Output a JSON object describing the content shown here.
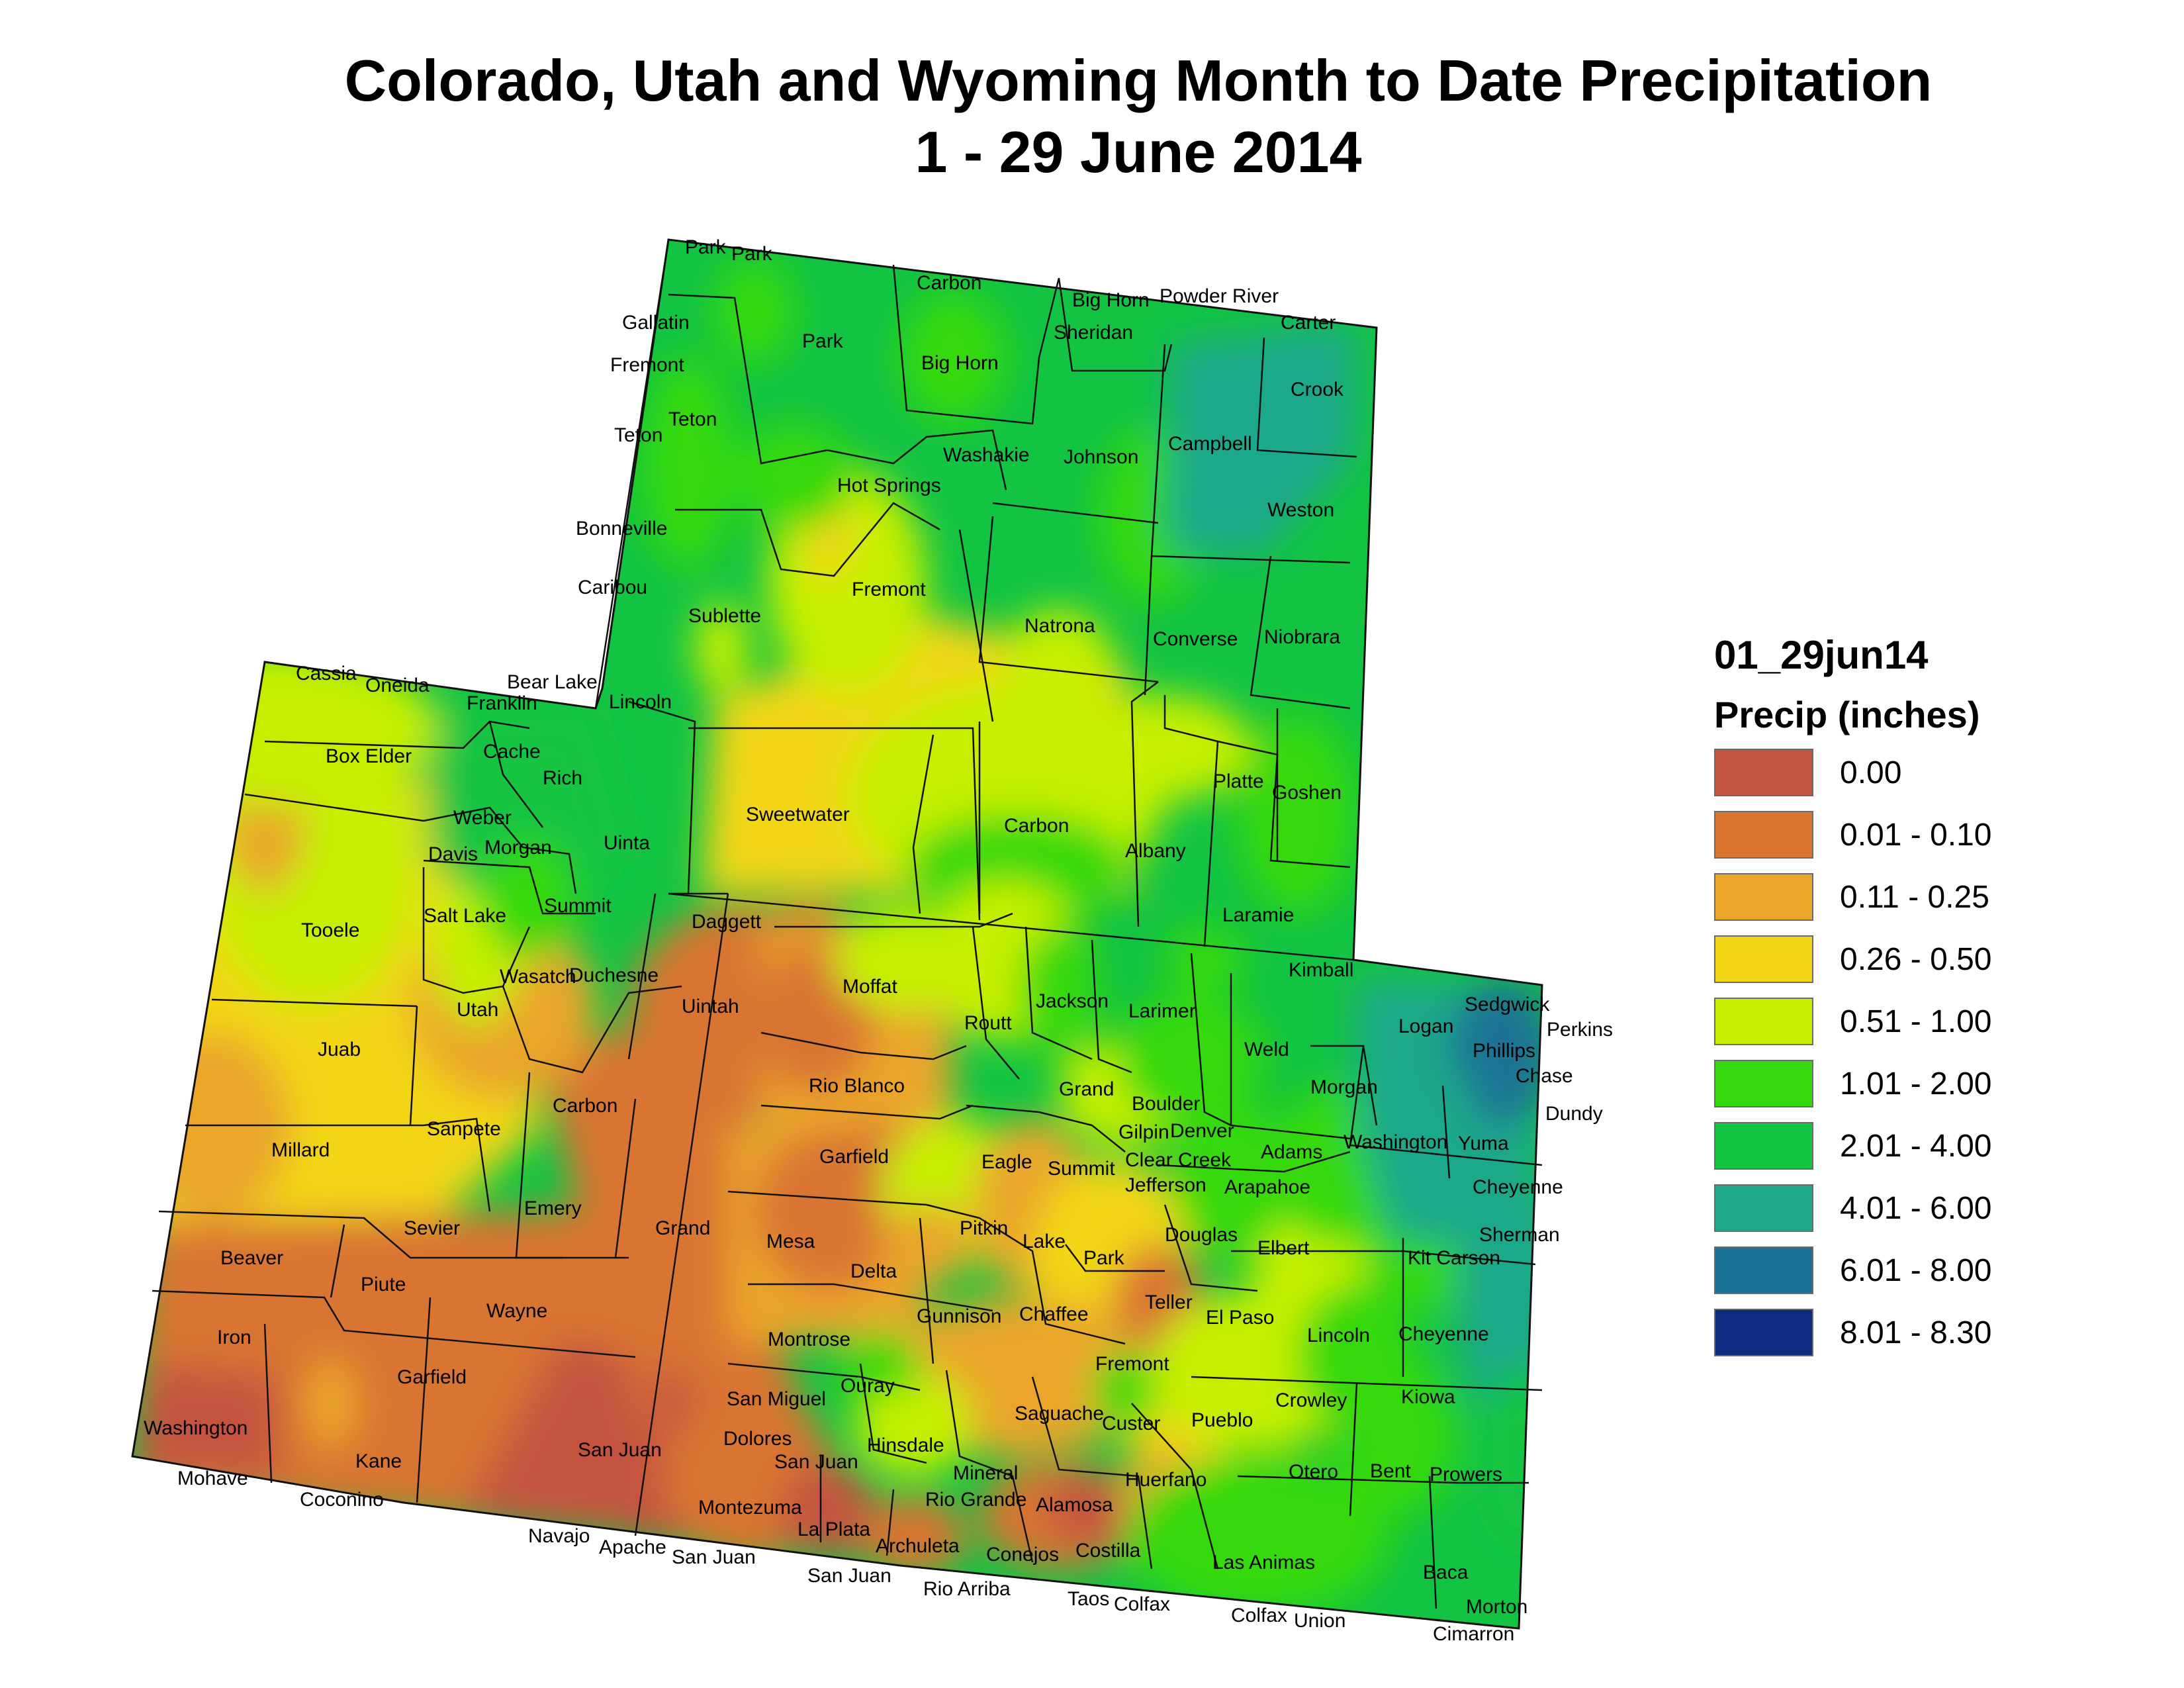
{
  "title_line1": "Colorado, Utah and Wyoming Month to Date Precipitation",
  "title_line2": "1 - 29 June 2014",
  "legend": {
    "layer_name": "01_29jun14",
    "field_name": "Precip (inches)",
    "classes": [
      {
        "label": "0.00",
        "color": "#c4533f"
      },
      {
        "label": "0.01 - 0.10",
        "color": "#d97530"
      },
      {
        "label": "0.11 - 0.25",
        "color": "#eaa52a"
      },
      {
        "label": "0.26 - 0.50",
        "color": "#f2d615"
      },
      {
        "label": "0.51 - 1.00",
        "color": "#c6ef00"
      },
      {
        "label": "1.01 - 2.00",
        "color": "#35d90e"
      },
      {
        "label": "2.01 - 4.00",
        "color": "#13c443"
      },
      {
        "label": "4.01 - 6.00",
        "color": "#1fa88a"
      },
      {
        "label": "6.01 - 8.00",
        "color": "#1a7394"
      },
      {
        "label": "8.01 - 8.30",
        "color": "#0d2b80"
      }
    ]
  },
  "labels": {
    "wy": [
      "Park",
      "Park",
      "Carbon",
      "Big Horn",
      "Powder River",
      "Carter",
      "Gallatin",
      "Park",
      "Sheridan",
      "Fremont",
      "Big Horn",
      "Crook",
      "Teton",
      "Teton",
      "Washakie",
      "Johnson",
      "Campbell",
      "Hot Springs",
      "Bonneville",
      "Weston",
      "Caribou",
      "Fremont",
      "Sublette",
      "Natrona",
      "Converse",
      "Niobrara",
      "Bear Lake",
      "Lincoln",
      "Sweetwater",
      "Carbon",
      "Albany",
      "Platte",
      "Goshen",
      "Uinta",
      "Laramie",
      "Kimball"
    ],
    "ut": [
      "Cassia",
      "Oneida",
      "Franklin",
      "Box Elder",
      "Cache",
      "Rich",
      "Weber",
      "Davis",
      "Morgan",
      "Summit",
      "Salt Lake",
      "Tooele",
      "Daggett",
      "Wasatch",
      "Duchesne",
      "Utah",
      "Uintah",
      "Juab",
      "Sanpete",
      "Carbon",
      "Millard",
      "Emery",
      "Sevier",
      "Grand",
      "Beaver",
      "Piute",
      "Wayne",
      "Iron",
      "Garfield",
      "Washington",
      "Kane",
      "San Juan",
      "Mohave",
      "Coconino",
      "Navajo",
      "Apache"
    ],
    "co": [
      "Moffat",
      "Routt",
      "Jackson",
      "Larimer",
      "Sedgwick",
      "Perkins",
      "Logan",
      "Phillips",
      "Chase",
      "Weld",
      "Rio Blanco",
      "Grand",
      "Boulder",
      "Morgan",
      "Dundy",
      "Gilpin",
      "Denver",
      "Washington",
      "Yuma",
      "Garfield",
      "Eagle",
      "Summit",
      "Clear Creek",
      "Adams",
      "Jefferson",
      "Arapahoe",
      "Cheyenne",
      "Mesa",
      "Pitkin",
      "Lake",
      "Douglas",
      "Sherman",
      "Elbert",
      "Park",
      "Kit Carson",
      "Delta",
      "Teller",
      "Gunnison",
      "Chaffee",
      "El Paso",
      "Lincoln",
      "Cheyenne",
      "Montrose",
      "Fremont",
      "Ouray",
      "Crowley",
      "Kiowa",
      "San Miguel",
      "Saguache",
      "Custer",
      "Pueblo",
      "Dolores",
      "Hinsdale",
      "San Juan",
      "Mineral",
      "Otero",
      "Bent",
      "Prowers",
      "Huerfano",
      "Rio Grande",
      "Alamosa",
      "Montezuma",
      "La Plata",
      "Archuleta",
      "Conejos",
      "Costilla",
      "Las Animas",
      "Baca",
      "San Juan",
      "San Juan",
      "Rio Arriba",
      "Taos",
      "Colfax",
      "Colfax",
      "Union",
      "Morton",
      "Cimarron"
    ]
  }
}
